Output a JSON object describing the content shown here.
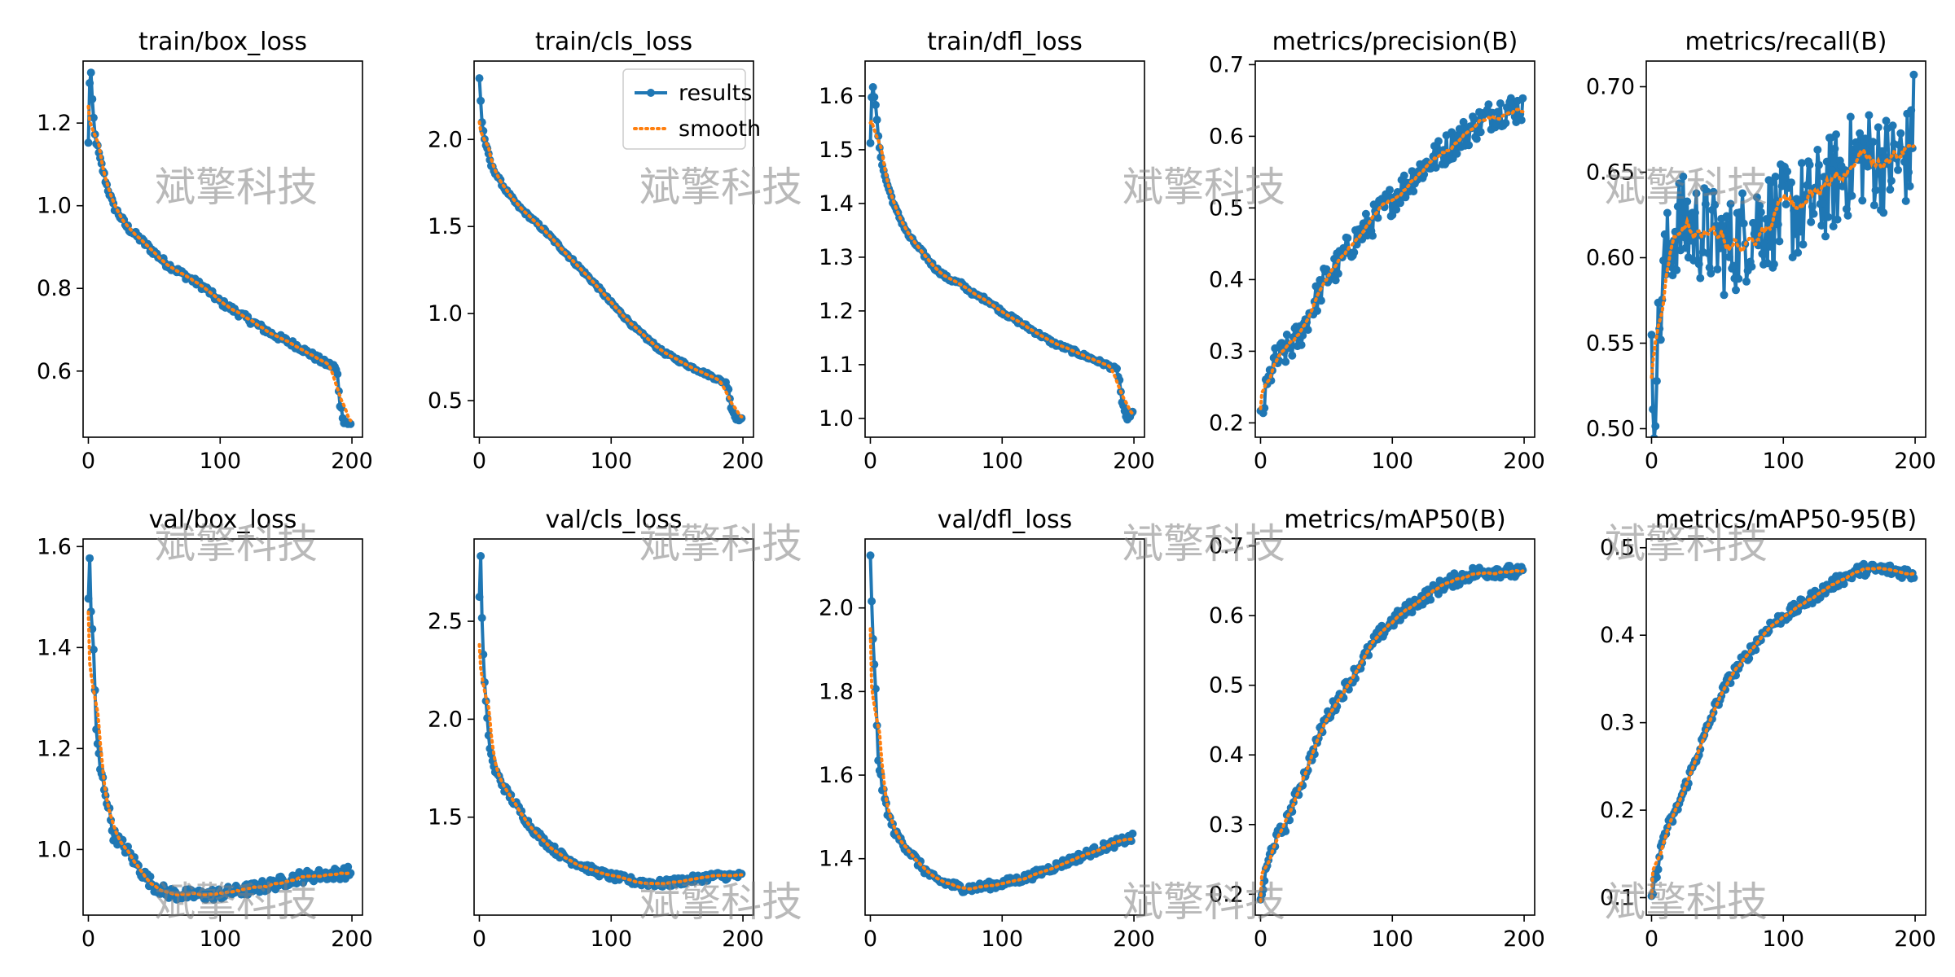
{
  "colors": {
    "results": "#1f77b4",
    "smooth": "#ff7f0e",
    "axis": "#000000",
    "watermark": "#9a9a9a"
  },
  "legend": {
    "placement": "top-right",
    "subplot_index": 1,
    "entries": [
      "results",
      "smooth"
    ]
  },
  "watermark_text": "斌擎科技",
  "chart_data": [
    {
      "type": "line",
      "title": "train/box_loss",
      "xlim": [
        -4,
        208
      ],
      "ylim": [
        0.44,
        1.35
      ],
      "yticks": [
        0.6,
        0.8,
        1.0,
        1.2
      ],
      "yticklabels": [
        "0.6",
        "0.8",
        "1.0",
        "1.2"
      ],
      "xticks": [
        0,
        100,
        200
      ],
      "xticklabels": [
        "0",
        "100",
        "200"
      ],
      "kp": [
        [
          1,
          1.15
        ],
        [
          2,
          1.3
        ],
        [
          3,
          1.32
        ],
        [
          4,
          1.25
        ],
        [
          6,
          1.17
        ],
        [
          10,
          1.11
        ],
        [
          15,
          1.05
        ],
        [
          20,
          1.0
        ],
        [
          30,
          0.95
        ],
        [
          40,
          0.92
        ],
        [
          50,
          0.89
        ],
        [
          60,
          0.86
        ],
        [
          70,
          0.84
        ],
        [
          80,
          0.82
        ],
        [
          90,
          0.8
        ],
        [
          100,
          0.77
        ],
        [
          120,
          0.73
        ],
        [
          140,
          0.69
        ],
        [
          160,
          0.66
        ],
        [
          180,
          0.62
        ],
        [
          188,
          0.61
        ],
        [
          190,
          0.59
        ],
        [
          192,
          0.52
        ],
        [
          195,
          0.48
        ],
        [
          200,
          0.47
        ]
      ],
      "noise": 0.008,
      "smooth_start": 1.24
    },
    {
      "type": "line",
      "title": "train/cls_loss",
      "xlim": [
        -4,
        208
      ],
      "ylim": [
        0.29,
        2.45
      ],
      "yticks": [
        0.5,
        1.0,
        1.5,
        2.0
      ],
      "yticklabels": [
        "0.5",
        "1.0",
        "1.5",
        "2.0"
      ],
      "xticks": [
        0,
        100,
        200
      ],
      "xticklabels": [
        "0",
        "100",
        "200"
      ],
      "kp": [
        [
          1,
          2.35
        ],
        [
          3,
          2.1
        ],
        [
          5,
          2.0
        ],
        [
          10,
          1.85
        ],
        [
          20,
          1.72
        ],
        [
          30,
          1.62
        ],
        [
          40,
          1.55
        ],
        [
          50,
          1.48
        ],
        [
          60,
          1.4
        ],
        [
          70,
          1.32
        ],
        [
          80,
          1.24
        ],
        [
          90,
          1.16
        ],
        [
          100,
          1.07
        ],
        [
          120,
          0.91
        ],
        [
          140,
          0.78
        ],
        [
          160,
          0.7
        ],
        [
          180,
          0.63
        ],
        [
          188,
          0.6
        ],
        [
          190,
          0.57
        ],
        [
          192,
          0.46
        ],
        [
          196,
          0.4
        ],
        [
          200,
          0.39
        ]
      ],
      "noise": 0.01,
      "smooth_start": 2.1
    },
    {
      "type": "line",
      "title": "train/dfl_loss",
      "xlim": [
        -4,
        208
      ],
      "ylim": [
        0.965,
        1.665
      ],
      "yticks": [
        1.0,
        1.1,
        1.2,
        1.3,
        1.4,
        1.5,
        1.6
      ],
      "yticklabels": [
        "1.0",
        "1.1",
        "1.2",
        "1.3",
        "1.4",
        "1.5",
        "1.6"
      ],
      "xticks": [
        0,
        100,
        200
      ],
      "xticklabels": [
        "0",
        "100",
        "200"
      ],
      "kp": [
        [
          1,
          1.51
        ],
        [
          2,
          1.6
        ],
        [
          3,
          1.62
        ],
        [
          5,
          1.58
        ],
        [
          8,
          1.5
        ],
        [
          12,
          1.45
        ],
        [
          20,
          1.39
        ],
        [
          30,
          1.34
        ],
        [
          40,
          1.31
        ],
        [
          50,
          1.28
        ],
        [
          60,
          1.26
        ],
        [
          70,
          1.25
        ],
        [
          80,
          1.23
        ],
        [
          90,
          1.22
        ],
        [
          100,
          1.2
        ],
        [
          120,
          1.17
        ],
        [
          140,
          1.14
        ],
        [
          160,
          1.12
        ],
        [
          180,
          1.1
        ],
        [
          188,
          1.09
        ],
        [
          190,
          1.07
        ],
        [
          192,
          1.03
        ],
        [
          195,
          1.0
        ],
        [
          200,
          1.01
        ]
      ],
      "noise": 0.004,
      "smooth_start": 1.55
    },
    {
      "type": "line",
      "title": "metrics/precision(B)",
      "xlim": [
        -4,
        208
      ],
      "ylim": [
        0.18,
        0.705
      ],
      "yticks": [
        0.2,
        0.3,
        0.4,
        0.5,
        0.6,
        0.7
      ],
      "yticklabels": [
        "0.2",
        "0.3",
        "0.4",
        "0.5",
        "0.6",
        "0.7"
      ],
      "xticks": [
        0,
        100,
        200
      ],
      "xticklabels": [
        "0",
        "100",
        "200"
      ],
      "kp": [
        [
          1,
          0.2
        ],
        [
          5,
          0.24
        ],
        [
          10,
          0.28
        ],
        [
          20,
          0.3
        ],
        [
          30,
          0.32
        ],
        [
          40,
          0.36
        ],
        [
          50,
          0.4
        ],
        [
          60,
          0.42
        ],
        [
          70,
          0.45
        ],
        [
          80,
          0.47
        ],
        [
          90,
          0.49
        ],
        [
          100,
          0.51
        ],
        [
          120,
          0.55
        ],
        [
          140,
          0.58
        ],
        [
          160,
          0.61
        ],
        [
          180,
          0.635
        ],
        [
          200,
          0.64
        ]
      ],
      "noise": 0.022,
      "smooth_start": 0.22
    },
    {
      "type": "line",
      "title": "metrics/recall(B)",
      "xlim": [
        -4,
        208
      ],
      "ylim": [
        0.495,
        0.715
      ],
      "yticks": [
        0.5,
        0.55,
        0.6,
        0.65,
        0.7
      ],
      "yticklabels": [
        "0.50",
        "0.55",
        "0.60",
        "0.65",
        "0.70"
      ],
      "xticks": [
        0,
        100,
        200
      ],
      "xticklabels": [
        "0",
        "100",
        "200"
      ],
      "kp": [
        [
          1,
          0.53
        ],
        [
          3,
          0.52
        ],
        [
          6,
          0.55
        ],
        [
          10,
          0.59
        ],
        [
          20,
          0.62
        ],
        [
          40,
          0.615
        ],
        [
          60,
          0.605
        ],
        [
          80,
          0.62
        ],
        [
          100,
          0.625
        ],
        [
          120,
          0.63
        ],
        [
          140,
          0.645
        ],
        [
          160,
          0.66
        ],
        [
          180,
          0.655
        ],
        [
          200,
          0.66
        ]
      ],
      "noise": 0.03,
      "smooth_start": 0.53,
      "last_y": 0.707
    },
    {
      "type": "line",
      "title": "val/box_loss",
      "xlim": [
        -4,
        208
      ],
      "ylim": [
        0.87,
        1.615
      ],
      "yticks": [
        1.0,
        1.2,
        1.4,
        1.6
      ],
      "yticklabels": [
        "1.0",
        "1.2",
        "1.4",
        "1.6"
      ],
      "xticks": [
        0,
        100,
        200
      ],
      "xticklabels": [
        "0",
        "100",
        "200"
      ],
      "kp": [
        [
          1,
          1.5
        ],
        [
          2,
          1.57
        ],
        [
          3,
          1.47
        ],
        [
          5,
          1.4
        ],
        [
          7,
          1.23
        ],
        [
          10,
          1.16
        ],
        [
          15,
          1.1
        ],
        [
          20,
          1.03
        ],
        [
          30,
          1.0
        ],
        [
          40,
          0.96
        ],
        [
          50,
          0.93
        ],
        [
          60,
          0.915
        ],
        [
          70,
          0.91
        ],
        [
          80,
          0.91
        ],
        [
          90,
          0.91
        ],
        [
          100,
          0.912
        ],
        [
          120,
          0.92
        ],
        [
          140,
          0.93
        ],
        [
          160,
          0.945
        ],
        [
          180,
          0.95
        ],
        [
          200,
          0.955
        ]
      ],
      "noise": 0.012,
      "smooth_start": 1.47
    },
    {
      "type": "line",
      "title": "val/cls_loss",
      "xlim": [
        -4,
        208
      ],
      "ylim": [
        1.0,
        2.92
      ],
      "yticks": [
        1.5,
        2.0,
        2.5
      ],
      "yticklabels": [
        "1.5",
        "2.0",
        "2.5"
      ],
      "xticks": [
        0,
        100,
        200
      ],
      "xticklabels": [
        "0",
        "100",
        "200"
      ],
      "kp": [
        [
          1,
          2.62
        ],
        [
          2,
          2.85
        ],
        [
          3,
          2.5
        ],
        [
          5,
          2.18
        ],
        [
          8,
          1.9
        ],
        [
          12,
          1.75
        ],
        [
          20,
          1.65
        ],
        [
          30,
          1.55
        ],
        [
          40,
          1.45
        ],
        [
          50,
          1.38
        ],
        [
          60,
          1.32
        ],
        [
          70,
          1.28
        ],
        [
          80,
          1.25
        ],
        [
          90,
          1.22
        ],
        [
          100,
          1.2
        ],
        [
          120,
          1.17
        ],
        [
          140,
          1.16
        ],
        [
          160,
          1.18
        ],
        [
          180,
          1.2
        ],
        [
          200,
          1.2
        ]
      ],
      "noise": 0.02,
      "smooth_start": 2.38
    },
    {
      "type": "line",
      "title": "val/dfl_loss",
      "xlim": [
        -4,
        208
      ],
      "ylim": [
        1.265,
        2.165
      ],
      "yticks": [
        1.4,
        1.6,
        1.8,
        2.0
      ],
      "yticklabels": [
        "1.4",
        "1.6",
        "1.8",
        "2.0"
      ],
      "xticks": [
        0,
        100,
        200
      ],
      "xticklabels": [
        "0",
        "100",
        "200"
      ],
      "kp": [
        [
          1,
          2.12
        ],
        [
          3,
          1.92
        ],
        [
          5,
          1.8
        ],
        [
          7,
          1.64
        ],
        [
          10,
          1.57
        ],
        [
          15,
          1.5
        ],
        [
          20,
          1.46
        ],
        [
          30,
          1.42
        ],
        [
          40,
          1.38
        ],
        [
          50,
          1.35
        ],
        [
          60,
          1.34
        ],
        [
          70,
          1.33
        ],
        [
          80,
          1.33
        ],
        [
          90,
          1.335
        ],
        [
          100,
          1.34
        ],
        [
          120,
          1.355
        ],
        [
          140,
          1.38
        ],
        [
          160,
          1.405
        ],
        [
          180,
          1.43
        ],
        [
          200,
          1.45
        ]
      ],
      "noise": 0.01,
      "smooth_start": 1.95
    },
    {
      "type": "line",
      "title": "metrics/mAP50(B)",
      "xlim": [
        -4,
        208
      ],
      "ylim": [
        0.17,
        0.71
      ],
      "yticks": [
        0.2,
        0.3,
        0.4,
        0.5,
        0.6,
        0.7
      ],
      "yticklabels": [
        "0.2",
        "0.3",
        "0.4",
        "0.5",
        "0.6",
        "0.7"
      ],
      "xticks": [
        0,
        100,
        200
      ],
      "xticklabels": [
        "0",
        "100",
        "200"
      ],
      "kp": [
        [
          1,
          0.19
        ],
        [
          5,
          0.23
        ],
        [
          10,
          0.27
        ],
        [
          20,
          0.3
        ],
        [
          30,
          0.35
        ],
        [
          40,
          0.4
        ],
        [
          50,
          0.45
        ],
        [
          60,
          0.48
        ],
        [
          70,
          0.51
        ],
        [
          80,
          0.54
        ],
        [
          90,
          0.57
        ],
        [
          100,
          0.59
        ],
        [
          120,
          0.62
        ],
        [
          140,
          0.645
        ],
        [
          160,
          0.66
        ],
        [
          180,
          0.665
        ],
        [
          200,
          0.66
        ]
      ],
      "noise": 0.01,
      "smooth_start": 0.19
    },
    {
      "type": "line",
      "title": "metrics/mAP50-95(B)",
      "xlim": [
        -4,
        208
      ],
      "ylim": [
        0.08,
        0.51
      ],
      "yticks": [
        0.1,
        0.2,
        0.3,
        0.4,
        0.5
      ],
      "yticklabels": [
        "0.1",
        "0.2",
        "0.3",
        "0.4",
        "0.5"
      ],
      "xticks": [
        0,
        100,
        200
      ],
      "xticklabels": [
        "0",
        "100",
        "200"
      ],
      "kp": [
        [
          1,
          0.1
        ],
        [
          5,
          0.13
        ],
        [
          10,
          0.17
        ],
        [
          20,
          0.2
        ],
        [
          30,
          0.24
        ],
        [
          40,
          0.28
        ],
        [
          50,
          0.32
        ],
        [
          60,
          0.35
        ],
        [
          70,
          0.37
        ],
        [
          80,
          0.39
        ],
        [
          90,
          0.41
        ],
        [
          100,
          0.42
        ],
        [
          120,
          0.44
        ],
        [
          140,
          0.46
        ],
        [
          160,
          0.475
        ],
        [
          180,
          0.475
        ],
        [
          200,
          0.47
        ]
      ],
      "noise": 0.007,
      "smooth_start": 0.1
    }
  ]
}
